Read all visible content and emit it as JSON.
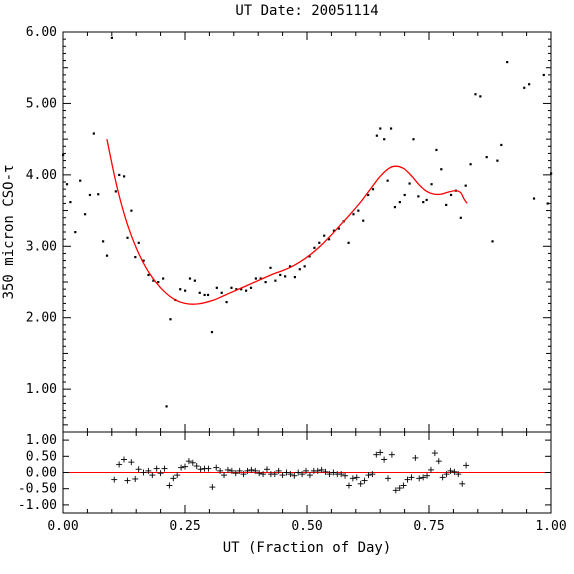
{
  "chart_data": {
    "type": "scatter",
    "title": "UT Date: 20051114",
    "xlabel": "UT (Fraction of Day)",
    "ylabel": "350 micron CSO-τ",
    "xlim": [
      0,
      1
    ],
    "main": {
      "ylim": [
        0.4,
        6.0
      ],
      "yticks": [
        "1.00",
        "2.00",
        "3.00",
        "4.00",
        "5.00",
        "6.00"
      ],
      "points": [
        [
          0.0,
          4.28
        ],
        [
          0.008,
          3.87
        ],
        [
          0.015,
          3.62
        ],
        [
          0.025,
          3.2
        ],
        [
          0.035,
          3.92
        ],
        [
          0.045,
          3.45
        ],
        [
          0.055,
          3.72
        ],
        [
          0.063,
          4.58
        ],
        [
          0.072,
          3.73
        ],
        [
          0.082,
          3.07
        ],
        [
          0.09,
          2.87
        ],
        [
          0.1,
          5.92
        ],
        [
          0.108,
          3.77
        ],
        [
          0.115,
          4.0
        ],
        [
          0.125,
          3.98
        ],
        [
          0.132,
          3.12
        ],
        [
          0.14,
          3.5
        ],
        [
          0.148,
          2.85
        ],
        [
          0.155,
          3.05
        ],
        [
          0.165,
          2.8
        ],
        [
          0.175,
          2.6
        ],
        [
          0.185,
          2.52
        ],
        [
          0.195,
          2.5
        ],
        [
          0.205,
          2.55
        ],
        [
          0.212,
          0.76
        ],
        [
          0.22,
          1.98
        ],
        [
          0.23,
          2.25
        ],
        [
          0.24,
          2.4
        ],
        [
          0.25,
          2.38
        ],
        [
          0.26,
          2.55
        ],
        [
          0.27,
          2.52
        ],
        [
          0.28,
          2.35
        ],
        [
          0.29,
          2.32
        ],
        [
          0.297,
          2.32
        ],
        [
          0.305,
          1.8
        ],
        [
          0.315,
          2.42
        ],
        [
          0.325,
          2.35
        ],
        [
          0.335,
          2.22
        ],
        [
          0.345,
          2.42
        ],
        [
          0.355,
          2.4
        ],
        [
          0.365,
          2.4
        ],
        [
          0.375,
          2.38
        ],
        [
          0.385,
          2.42
        ],
        [
          0.395,
          2.55
        ],
        [
          0.405,
          2.55
        ],
        [
          0.415,
          2.5
        ],
        [
          0.425,
          2.7
        ],
        [
          0.435,
          2.52
        ],
        [
          0.445,
          2.6
        ],
        [
          0.455,
          2.58
        ],
        [
          0.465,
          2.72
        ],
        [
          0.475,
          2.57
        ],
        [
          0.485,
          2.68
        ],
        [
          0.495,
          2.72
        ],
        [
          0.505,
          2.86
        ],
        [
          0.515,
          2.98
        ],
        [
          0.525,
          3.05
        ],
        [
          0.535,
          3.15
        ],
        [
          0.545,
          3.1
        ],
        [
          0.555,
          3.22
        ],
        [
          0.565,
          3.25
        ],
        [
          0.575,
          3.35
        ],
        [
          0.585,
          3.05
        ],
        [
          0.595,
          3.45
        ],
        [
          0.605,
          3.5
        ],
        [
          0.615,
          3.36
        ],
        [
          0.625,
          3.72
        ],
        [
          0.635,
          3.8
        ],
        [
          0.643,
          4.55
        ],
        [
          0.65,
          4.65
        ],
        [
          0.658,
          4.5
        ],
        [
          0.665,
          3.92
        ],
        [
          0.672,
          4.65
        ],
        [
          0.68,
          3.55
        ],
        [
          0.69,
          3.62
        ],
        [
          0.7,
          3.72
        ],
        [
          0.71,
          3.88
        ],
        [
          0.718,
          4.5
        ],
        [
          0.728,
          3.7
        ],
        [
          0.738,
          3.62
        ],
        [
          0.745,
          3.65
        ],
        [
          0.755,
          3.87
        ],
        [
          0.765,
          4.35
        ],
        [
          0.775,
          4.08
        ],
        [
          0.785,
          3.58
        ],
        [
          0.795,
          3.72
        ],
        [
          0.805,
          3.78
        ],
        [
          0.815,
          3.4
        ],
        [
          0.825,
          3.85
        ],
        [
          0.835,
          4.15
        ],
        [
          0.845,
          5.13
        ],
        [
          0.855,
          5.1
        ],
        [
          0.868,
          4.25
        ],
        [
          0.88,
          3.07
        ],
        [
          0.89,
          4.2
        ],
        [
          0.898,
          4.42
        ],
        [
          0.91,
          5.58
        ],
        [
          0.945,
          5.22
        ],
        [
          0.955,
          5.27
        ],
        [
          0.965,
          3.67
        ],
        [
          0.985,
          5.4
        ],
        [
          0.993,
          3.6
        ],
        [
          1.0,
          4.02
        ]
      ],
      "fit": [
        [
          0.09,
          4.5
        ],
        [
          0.11,
          3.85
        ],
        [
          0.13,
          3.35
        ],
        [
          0.15,
          2.98
        ],
        [
          0.17,
          2.7
        ],
        [
          0.19,
          2.5
        ],
        [
          0.21,
          2.35
        ],
        [
          0.23,
          2.25
        ],
        [
          0.25,
          2.2
        ],
        [
          0.27,
          2.19
        ],
        [
          0.29,
          2.21
        ],
        [
          0.31,
          2.25
        ],
        [
          0.33,
          2.31
        ],
        [
          0.35,
          2.37
        ],
        [
          0.37,
          2.43
        ],
        [
          0.39,
          2.49
        ],
        [
          0.41,
          2.55
        ],
        [
          0.43,
          2.61
        ],
        [
          0.45,
          2.66
        ],
        [
          0.47,
          2.72
        ],
        [
          0.49,
          2.8
        ],
        [
          0.51,
          2.9
        ],
        [
          0.53,
          3.02
        ],
        [
          0.55,
          3.16
        ],
        [
          0.57,
          3.31
        ],
        [
          0.59,
          3.46
        ],
        [
          0.61,
          3.62
        ],
        [
          0.63,
          3.8
        ],
        [
          0.65,
          3.98
        ],
        [
          0.67,
          4.1
        ],
        [
          0.685,
          4.12
        ],
        [
          0.7,
          4.08
        ],
        [
          0.715,
          3.98
        ],
        [
          0.73,
          3.86
        ],
        [
          0.745,
          3.77
        ],
        [
          0.76,
          3.73
        ],
        [
          0.775,
          3.73
        ],
        [
          0.79,
          3.76
        ],
        [
          0.805,
          3.78
        ],
        [
          0.815,
          3.75
        ],
        [
          0.822,
          3.66
        ],
        [
          0.828,
          3.6
        ]
      ]
    },
    "residual": {
      "ylim": [
        -1.25,
        1.25
      ],
      "yticks": [
        "1.00",
        "0.50",
        "0.00",
        "-0.50",
        "-1.00"
      ],
      "yvalues": [
        1.0,
        0.5,
        0.0,
        -0.5,
        -1.0
      ],
      "points": [
        [
          0.105,
          -0.22
        ],
        [
          0.115,
          0.25
        ],
        [
          0.125,
          0.4
        ],
        [
          0.132,
          -0.25
        ],
        [
          0.14,
          0.32
        ],
        [
          0.148,
          -0.2
        ],
        [
          0.155,
          0.1
        ],
        [
          0.165,
          0.0
        ],
        [
          0.175,
          0.05
        ],
        [
          0.183,
          -0.08
        ],
        [
          0.192,
          0.12
        ],
        [
          0.2,
          -0.02
        ],
        [
          0.208,
          0.12
        ],
        [
          0.218,
          -0.4
        ],
        [
          0.226,
          -0.18
        ],
        [
          0.234,
          -0.08
        ],
        [
          0.242,
          0.15
        ],
        [
          0.25,
          0.18
        ],
        [
          0.258,
          0.35
        ],
        [
          0.266,
          0.3
        ],
        [
          0.274,
          0.2
        ],
        [
          0.282,
          0.1
        ],
        [
          0.29,
          0.12
        ],
        [
          0.298,
          0.12
        ],
        [
          0.306,
          -0.45
        ],
        [
          0.314,
          0.15
        ],
        [
          0.322,
          0.05
        ],
        [
          0.33,
          -0.08
        ],
        [
          0.338,
          0.08
        ],
        [
          0.346,
          0.05
        ],
        [
          0.354,
          -0.02
        ],
        [
          0.362,
          0.05
        ],
        [
          0.37,
          -0.05
        ],
        [
          0.378,
          0.05
        ],
        [
          0.386,
          0.08
        ],
        [
          0.394,
          0.05
        ],
        [
          0.402,
          -0.02
        ],
        [
          0.41,
          -0.05
        ],
        [
          0.418,
          0.1
        ],
        [
          0.426,
          -0.05
        ],
        [
          0.434,
          -0.05
        ],
        [
          0.442,
          0.05
        ],
        [
          0.45,
          -0.08
        ],
        [
          0.458,
          0.0
        ],
        [
          0.466,
          -0.05
        ],
        [
          0.474,
          -0.1
        ],
        [
          0.482,
          0.0
        ],
        [
          0.49,
          -0.05
        ],
        [
          0.498,
          0.05
        ],
        [
          0.506,
          -0.08
        ],
        [
          0.514,
          0.05
        ],
        [
          0.522,
          0.05
        ],
        [
          0.53,
          0.08
        ],
        [
          0.538,
          0.02
        ],
        [
          0.546,
          -0.05
        ],
        [
          0.554,
          0.0
        ],
        [
          0.562,
          -0.05
        ],
        [
          0.57,
          -0.05
        ],
        [
          0.578,
          -0.1
        ],
        [
          0.586,
          -0.4
        ],
        [
          0.594,
          -0.18
        ],
        [
          0.602,
          -0.15
        ],
        [
          0.61,
          -0.35
        ],
        [
          0.618,
          -0.25
        ],
        [
          0.626,
          -0.08
        ],
        [
          0.634,
          -0.05
        ],
        [
          0.642,
          0.55
        ],
        [
          0.65,
          0.62
        ],
        [
          0.658,
          0.4
        ],
        [
          0.666,
          -0.18
        ],
        [
          0.674,
          0.55
        ],
        [
          0.682,
          -0.55
        ],
        [
          0.69,
          -0.48
        ],
        [
          0.698,
          -0.4
        ],
        [
          0.706,
          -0.22
        ],
        [
          0.714,
          -0.15
        ],
        [
          0.722,
          0.45
        ],
        [
          0.73,
          -0.18
        ],
        [
          0.738,
          -0.15
        ],
        [
          0.746,
          -0.1
        ],
        [
          0.754,
          0.08
        ],
        [
          0.762,
          0.6
        ],
        [
          0.77,
          0.35
        ],
        [
          0.778,
          -0.15
        ],
        [
          0.786,
          -0.05
        ],
        [
          0.794,
          0.05
        ],
        [
          0.802,
          0.02
        ],
        [
          0.81,
          -0.05
        ],
        [
          0.818,
          -0.35
        ],
        [
          0.826,
          0.22
        ]
      ]
    }
  }
}
